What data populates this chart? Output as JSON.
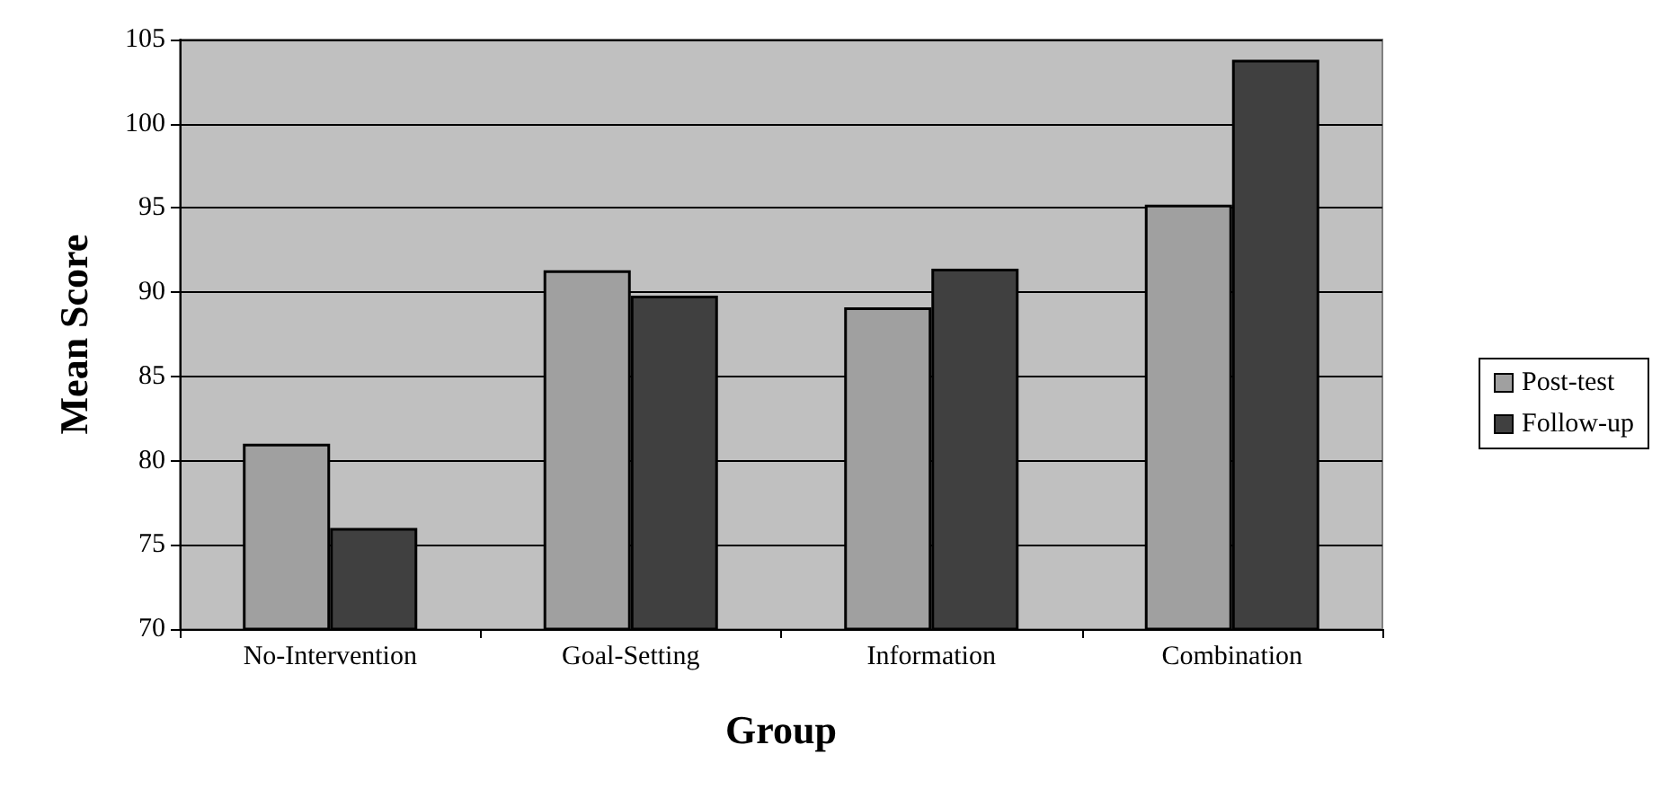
{
  "chart_data": {
    "type": "bar",
    "xlabel": "Group",
    "ylabel": "Mean Score",
    "categories": [
      "No-Intervention",
      "Goal-Setting",
      "Information",
      "Combination"
    ],
    "series": [
      {
        "name": "Post-test",
        "color": "#a0a0a0",
        "values": [
          81,
          91.3,
          89.1,
          95.2
        ]
      },
      {
        "name": "Follow-up",
        "color": "#404040",
        "values": [
          76,
          89.8,
          91.4,
          103.8
        ]
      }
    ],
    "ylim": [
      70,
      105
    ],
    "yticks": [
      70,
      75,
      80,
      85,
      90,
      95,
      100,
      105
    ],
    "grid": "y",
    "legend": "right"
  }
}
